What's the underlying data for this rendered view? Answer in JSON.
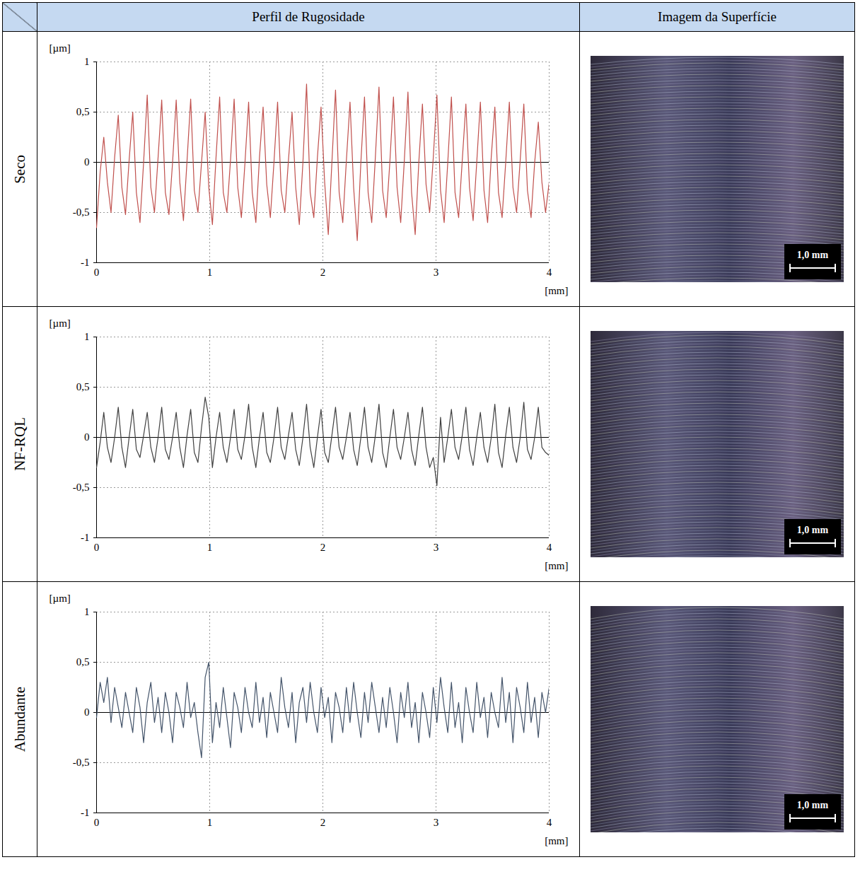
{
  "figure": {
    "columns": [
      "Perfil de Rugosidade",
      "Imagem da Superfície"
    ],
    "scale_bar_label": "1,0 mm"
  },
  "chart_data": [
    {
      "type": "line",
      "title": "Seco",
      "xlabel": "[mm]",
      "ylabel": "[µm]",
      "color": "#c0504d",
      "grid": true,
      "xlim": [
        0,
        4
      ],
      "xticks": [
        0,
        1,
        2,
        3,
        4
      ],
      "ylim": [
        -1,
        1
      ],
      "yticks": [
        -1,
        {
          "value": -0.5,
          "label": "-0,5"
        },
        0,
        {
          "value": 0.5,
          "label": "0,5"
        },
        1
      ],
      "x": [
        0,
        0.032,
        0.064,
        0.096,
        0.128,
        0.16,
        0.192,
        0.224,
        0.256,
        0.288,
        0.32,
        0.352,
        0.384,
        0.416,
        0.448,
        0.48,
        0.512,
        0.544,
        0.576,
        0.608,
        0.64,
        0.672,
        0.704,
        0.736,
        0.768,
        0.8,
        0.832,
        0.864,
        0.896,
        0.928,
        0.96,
        0.992,
        1.024,
        1.056,
        1.088,
        1.12,
        1.152,
        1.184,
        1.216,
        1.248,
        1.28,
        1.312,
        1.344,
        1.376,
        1.408,
        1.44,
        1.472,
        1.504,
        1.536,
        1.568,
        1.6,
        1.632,
        1.664,
        1.696,
        1.728,
        1.76,
        1.792,
        1.824,
        1.856,
        1.888,
        1.92,
        1.952,
        1.984,
        2.016,
        2.048,
        2.08,
        2.112,
        2.144,
        2.176,
        2.208,
        2.24,
        2.272,
        2.304,
        2.336,
        2.368,
        2.4,
        2.432,
        2.464,
        2.496,
        2.528,
        2.56,
        2.592,
        2.624,
        2.656,
        2.688,
        2.72,
        2.752,
        2.784,
        2.816,
        2.848,
        2.88,
        2.912,
        2.944,
        2.976,
        3.008,
        3.04,
        3.072,
        3.104,
        3.136,
        3.168,
        3.2,
        3.232,
        3.264,
        3.296,
        3.328,
        3.36,
        3.392,
        3.424,
        3.456,
        3.488,
        3.52,
        3.552,
        3.584,
        3.616,
        3.648,
        3.68,
        3.712,
        3.744,
        3.776,
        3.808,
        3.84,
        3.872,
        3.904,
        3.936,
        3.968,
        4.0
      ],
      "values": [
        -0.65,
        -0.1,
        0.25,
        -0.2,
        -0.5,
        0.05,
        0.47,
        -0.25,
        -0.52,
        0.02,
        0.5,
        -0.3,
        -0.6,
        0.0,
        0.67,
        -0.25,
        -0.5,
        0.05,
        0.62,
        -0.3,
        -0.52,
        0.0,
        0.62,
        -0.2,
        -0.58,
        0.02,
        0.63,
        -0.28,
        -0.5,
        0.0,
        0.5,
        -0.25,
        -0.62,
        0.05,
        0.65,
        -0.3,
        -0.5,
        0.02,
        0.63,
        -0.25,
        -0.55,
        0.0,
        0.6,
        -0.3,
        -0.6,
        0.05,
        0.55,
        -0.22,
        -0.55,
        0.0,
        0.6,
        -0.28,
        -0.5,
        0.02,
        0.5,
        -0.25,
        -0.62,
        0.0,
        0.78,
        -0.3,
        -0.55,
        0.05,
        0.55,
        -0.2,
        -0.72,
        0.0,
        0.72,
        -0.3,
        -0.6,
        0.02,
        0.6,
        -0.25,
        -0.78,
        0.0,
        0.65,
        -0.3,
        -0.6,
        0.05,
        0.75,
        -0.28,
        -0.55,
        0.0,
        0.65,
        -0.25,
        -0.6,
        0.02,
        0.7,
        -0.3,
        -0.72,
        0.0,
        0.58,
        -0.22,
        -0.5,
        0.05,
        0.67,
        -0.28,
        -0.6,
        0.0,
        0.65,
        -0.3,
        -0.55,
        0.02,
        0.58,
        -0.25,
        -0.58,
        0.0,
        0.6,
        -0.28,
        -0.6,
        0.05,
        0.55,
        -0.3,
        -0.55,
        0.0,
        0.6,
        -0.25,
        -0.5,
        0.02,
        0.58,
        -0.28,
        -0.55,
        0.0,
        0.4,
        -0.2,
        -0.5,
        -0.2
      ]
    },
    {
      "type": "line",
      "title": "NF-RQL",
      "xlabel": "[mm]",
      "ylabel": "[µm]",
      "color": "#404040",
      "grid": true,
      "xlim": [
        0,
        4
      ],
      "xticks": [
        0,
        1,
        2,
        3,
        4
      ],
      "ylim": [
        -1,
        1
      ],
      "yticks": [
        -1,
        {
          "value": -0.5,
          "label": "-0,5"
        },
        0,
        {
          "value": 0.5,
          "label": "0,5"
        },
        1
      ],
      "x": [
        0,
        0.032,
        0.064,
        0.096,
        0.128,
        0.16,
        0.192,
        0.224,
        0.256,
        0.288,
        0.32,
        0.352,
        0.384,
        0.416,
        0.448,
        0.48,
        0.512,
        0.544,
        0.576,
        0.608,
        0.64,
        0.672,
        0.704,
        0.736,
        0.768,
        0.8,
        0.832,
        0.864,
        0.896,
        0.928,
        0.96,
        0.992,
        1.024,
        1.056,
        1.088,
        1.12,
        1.152,
        1.184,
        1.216,
        1.248,
        1.28,
        1.312,
        1.344,
        1.376,
        1.408,
        1.44,
        1.472,
        1.504,
        1.536,
        1.568,
        1.6,
        1.632,
        1.664,
        1.696,
        1.728,
        1.76,
        1.792,
        1.824,
        1.856,
        1.888,
        1.92,
        1.952,
        1.984,
        2.016,
        2.048,
        2.08,
        2.112,
        2.144,
        2.176,
        2.208,
        2.24,
        2.272,
        2.304,
        2.336,
        2.368,
        2.4,
        2.432,
        2.464,
        2.496,
        2.528,
        2.56,
        2.592,
        2.624,
        2.656,
        2.688,
        2.72,
        2.752,
        2.784,
        2.816,
        2.848,
        2.88,
        2.912,
        2.944,
        2.976,
        3.008,
        3.04,
        3.072,
        3.104,
        3.136,
        3.168,
        3.2,
        3.232,
        3.264,
        3.296,
        3.328,
        3.36,
        3.392,
        3.424,
        3.456,
        3.488,
        3.52,
        3.552,
        3.584,
        3.616,
        3.648,
        3.68,
        3.712,
        3.744,
        3.776,
        3.808,
        3.84,
        3.872,
        3.904,
        3.936,
        3.968,
        4.0
      ],
      "values": [
        -0.3,
        -0.05,
        0.25,
        -0.1,
        -0.25,
        0.0,
        0.3,
        -0.1,
        -0.3,
        0.0,
        0.28,
        -0.12,
        -0.2,
        0.02,
        0.25,
        -0.1,
        -0.25,
        0.0,
        0.3,
        -0.12,
        -0.22,
        0.0,
        0.25,
        -0.1,
        -0.3,
        0.02,
        0.28,
        -0.15,
        -0.25,
        0.1,
        0.4,
        0.2,
        -0.3,
        0.0,
        0.25,
        -0.1,
        -0.25,
        0.0,
        0.28,
        -0.12,
        -0.22,
        0.02,
        0.33,
        -0.1,
        -0.3,
        0.0,
        0.25,
        -0.15,
        -0.25,
        0.0,
        0.3,
        -0.1,
        -0.22,
        0.02,
        0.25,
        -0.12,
        -0.28,
        0.0,
        0.33,
        -0.1,
        -0.3,
        0.0,
        0.28,
        -0.15,
        -0.25,
        0.02,
        0.3,
        -0.1,
        -0.22,
        0.0,
        0.25,
        -0.12,
        -0.28,
        0.0,
        0.3,
        -0.1,
        -0.25,
        0.02,
        0.33,
        -0.15,
        -0.3,
        0.0,
        0.28,
        -0.1,
        -0.22,
        0.0,
        0.25,
        -0.12,
        -0.28,
        0.02,
        0.3,
        -0.1,
        -0.3,
        -0.2,
        -0.48,
        0.2,
        -0.25,
        0.0,
        0.28,
        -0.1,
        -0.22,
        0.02,
        0.3,
        -0.12,
        -0.28,
        0.0,
        0.25,
        -0.1,
        -0.25,
        0.0,
        0.33,
        -0.15,
        -0.3,
        0.02,
        0.3,
        -0.1,
        -0.25,
        0.0,
        0.35,
        -0.12,
        -0.22,
        0.0,
        0.3,
        -0.1,
        -0.15,
        -0.18
      ]
    },
    {
      "type": "line",
      "title": "Abundante",
      "xlabel": "[mm]",
      "ylabel": "[µm]",
      "color": "#44546a",
      "grid": true,
      "xlim": [
        0,
        4
      ],
      "xticks": [
        0,
        1,
        2,
        3,
        4
      ],
      "ylim": [
        -1,
        1
      ],
      "yticks": [
        -1,
        {
          "value": -0.5,
          "label": "-0,5"
        },
        0,
        {
          "value": 0.5,
          "label": "0,5"
        },
        1
      ],
      "x": [
        0,
        0.032,
        0.064,
        0.096,
        0.128,
        0.16,
        0.192,
        0.224,
        0.256,
        0.288,
        0.32,
        0.352,
        0.384,
        0.416,
        0.448,
        0.48,
        0.512,
        0.544,
        0.576,
        0.608,
        0.64,
        0.672,
        0.704,
        0.736,
        0.768,
        0.8,
        0.832,
        0.864,
        0.896,
        0.928,
        0.96,
        0.992,
        1.024,
        1.056,
        1.088,
        1.12,
        1.152,
        1.184,
        1.216,
        1.248,
        1.28,
        1.312,
        1.344,
        1.376,
        1.408,
        1.44,
        1.472,
        1.504,
        1.536,
        1.568,
        1.6,
        1.632,
        1.664,
        1.696,
        1.728,
        1.76,
        1.792,
        1.824,
        1.856,
        1.888,
        1.92,
        1.952,
        1.984,
        2.016,
        2.048,
        2.08,
        2.112,
        2.144,
        2.176,
        2.208,
        2.24,
        2.272,
        2.304,
        2.336,
        2.368,
        2.4,
        2.432,
        2.464,
        2.496,
        2.528,
        2.56,
        2.592,
        2.624,
        2.656,
        2.688,
        2.72,
        2.752,
        2.784,
        2.816,
        2.848,
        2.88,
        2.912,
        2.944,
        2.976,
        3.008,
        3.04,
        3.072,
        3.104,
        3.136,
        3.168,
        3.2,
        3.232,
        3.264,
        3.296,
        3.328,
        3.36,
        3.392,
        3.424,
        3.456,
        3.488,
        3.52,
        3.552,
        3.584,
        3.616,
        3.648,
        3.68,
        3.712,
        3.744,
        3.776,
        3.808,
        3.84,
        3.872,
        3.904,
        3.936,
        3.968,
        4.0
      ],
      "values": [
        -0.05,
        0.3,
        0.1,
        0.35,
        -0.1,
        0.25,
        0.05,
        -0.15,
        0.2,
        0.0,
        -0.2,
        0.25,
        0.05,
        -0.3,
        0.1,
        0.3,
        -0.1,
        0.15,
        -0.2,
        0.2,
        0.0,
        -0.3,
        0.2,
        0.05,
        -0.15,
        0.3,
        -0.05,
        0.1,
        -0.2,
        -0.45,
        0.35,
        0.5,
        -0.3,
        0.1,
        -0.15,
        0.25,
        -0.05,
        -0.35,
        0.2,
        0.05,
        -0.2,
        0.25,
        0.0,
        -0.15,
        0.3,
        -0.1,
        0.15,
        -0.25,
        0.2,
        0.0,
        -0.2,
        0.35,
        0.05,
        -0.15,
        0.2,
        -0.3,
        0.1,
        0.25,
        -0.1,
        0.3,
        0.0,
        -0.2,
        0.25,
        -0.05,
        0.15,
        -0.3,
        0.2,
        0.05,
        -0.2,
        0.25,
        -0.1,
        0.3,
        0.0,
        -0.25,
        0.2,
        -0.1,
        0.3,
        0.05,
        -0.2,
        0.15,
        -0.15,
        0.25,
        0.0,
        -0.3,
        0.2,
        -0.05,
        0.3,
        -0.15,
        0.1,
        -0.3,
        0.2,
        0.0,
        -0.25,
        0.25,
        -0.1,
        0.35,
        0.05,
        -0.2,
        0.3,
        -0.15,
        0.1,
        -0.3,
        0.25,
        0.0,
        -0.2,
        0.3,
        -0.05,
        0.15,
        -0.25,
        0.2,
        0.0,
        -0.15,
        0.35,
        -0.1,
        0.2,
        -0.3,
        0.25,
        0.05,
        -0.2,
        0.3,
        -0.1,
        0.15,
        -0.25,
        0.2,
        0.0,
        0.25
      ]
    }
  ]
}
